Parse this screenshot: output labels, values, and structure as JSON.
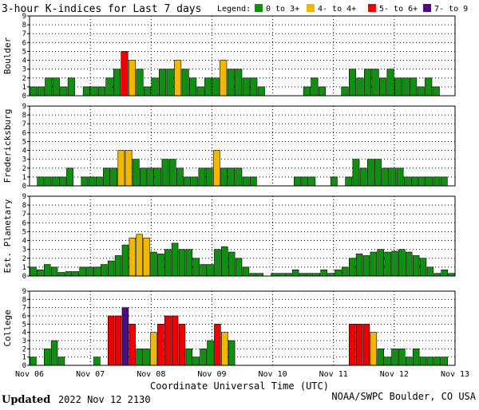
{
  "chart_data": {
    "type": "bar",
    "title": "3-hour K-indices for Last 7 days",
    "legend_title": "Legend:",
    "legend": [
      {
        "label": "0 to 3+",
        "color": "#109010"
      },
      {
        "label": "4- to 4+",
        "color": "#f0b800"
      },
      {
        "label": "5- to 6+",
        "color": "#f00000"
      },
      {
        "label": "7- to 9",
        "color": "#4d0d80"
      }
    ],
    "xlabel": "Coordinate Universal Time (UTC)",
    "x_tick_labels": [
      "Nov 06",
      "Nov 07",
      "Nov 08",
      "Nov 09",
      "Nov 10",
      "Nov 11",
      "Nov 12",
      "Nov 13"
    ],
    "ylim": [
      0,
      9
    ],
    "y_ticks": [
      0,
      1,
      2,
      3,
      4,
      5,
      6,
      7,
      8,
      9
    ],
    "grid": true,
    "series": [
      {
        "name": "Boulder",
        "values": [
          1,
          1,
          2,
          2,
          1,
          2,
          0,
          1,
          1,
          1,
          2,
          3,
          5,
          4,
          3,
          1,
          2,
          3,
          3,
          4,
          3,
          2,
          1,
          2,
          2,
          4,
          3,
          3,
          2,
          2,
          1,
          0,
          0,
          0,
          0,
          0,
          1,
          2,
          1,
          0,
          0,
          1,
          3,
          2,
          3,
          3,
          2,
          3,
          2,
          2,
          2,
          1,
          2,
          1,
          0,
          0
        ]
      },
      {
        "name": "Fredericksburg",
        "values": [
          0,
          1,
          1,
          1,
          1,
          2,
          0,
          1,
          1,
          1,
          2,
          2,
          4,
          4,
          3,
          2,
          2,
          2,
          3,
          3,
          2,
          1,
          1,
          2,
          2,
          4,
          2,
          2,
          2,
          1,
          1,
          0,
          0,
          0,
          0,
          0,
          1,
          1,
          1,
          0,
          0,
          1,
          0,
          1,
          3,
          2,
          3,
          3,
          2,
          2,
          2,
          1,
          1,
          1,
          1,
          1,
          1,
          0
        ]
      },
      {
        "name": "Est. Planetary",
        "values": [
          1,
          0.7,
          1.3,
          1,
          0.4,
          0.5,
          0.5,
          1,
          1,
          1,
          1.3,
          1.7,
          2.3,
          3.5,
          4.3,
          4.7,
          4.3,
          2.7,
          2.5,
          3,
          3.7,
          3,
          3,
          2,
          1.3,
          1.3,
          3,
          3.3,
          2.7,
          2,
          1,
          0.3,
          0.3,
          0,
          0.3,
          0.3,
          0.3,
          0.7,
          0.3,
          0.3,
          0.3,
          0.7,
          0.3,
          0.7,
          1,
          2,
          2.5,
          2.3,
          2.7,
          3,
          2.7,
          2.8,
          3,
          2.7,
          2.3,
          2,
          1,
          0.3,
          0.7,
          0.3
        ]
      },
      {
        "name": "College",
        "values": [
          1,
          0,
          2,
          3,
          1,
          0,
          0,
          0,
          0,
          1,
          0,
          6,
          6,
          7,
          5,
          2,
          2,
          4,
          5,
          6,
          6,
          5,
          2,
          1,
          2,
          3,
          5,
          4,
          3,
          0,
          0,
          0,
          0,
          0,
          0,
          0,
          0,
          0,
          0,
          0,
          0,
          0,
          0,
          0,
          0,
          5,
          5,
          5,
          4,
          2,
          1,
          2,
          2,
          1,
          2,
          1,
          1,
          1,
          1,
          0
        ]
      }
    ]
  },
  "footer": {
    "updated_label": "Updated",
    "updated_value": "2022 Nov 12 2130",
    "source": "NOAA/SWPC Boulder, CO USA"
  }
}
